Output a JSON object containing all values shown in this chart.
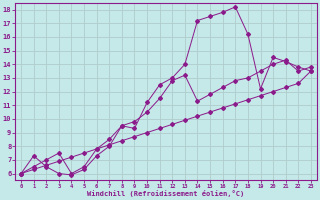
{
  "xlabel": "Windchill (Refroidissement éolien,°C)",
  "bg_color": "#c5e8e8",
  "grid_color": "#b0cccc",
  "line_color": "#8b1a8b",
  "xlim": [
    -0.5,
    23.5
  ],
  "ylim": [
    5.5,
    18.5
  ],
  "xticks": [
    0,
    1,
    2,
    3,
    4,
    5,
    6,
    7,
    8,
    9,
    10,
    11,
    12,
    13,
    14,
    15,
    16,
    17,
    18,
    19,
    20,
    21,
    22,
    23
  ],
  "yticks": [
    6,
    7,
    8,
    9,
    10,
    11,
    12,
    13,
    14,
    15,
    16,
    17,
    18
  ],
  "curve1_x": [
    0,
    1,
    2,
    3,
    4,
    5,
    6,
    7,
    8,
    9,
    10,
    11,
    12,
    13,
    14,
    15,
    16,
    17,
    18,
    19,
    20,
    21,
    22,
    23
  ],
  "curve1_y": [
    6.0,
    7.3,
    6.5,
    6.0,
    5.9,
    6.3,
    7.3,
    8.0,
    9.5,
    9.3,
    11.2,
    12.5,
    13.0,
    14.0,
    17.2,
    17.5,
    17.8,
    18.2,
    16.2,
    12.2,
    14.5,
    14.2,
    13.8,
    13.5
  ],
  "curve2_x": [
    0,
    1,
    2,
    3,
    4,
    5,
    6,
    7,
    8,
    9,
    10,
    11,
    12,
    13,
    14,
    15,
    16,
    17,
    18,
    19,
    20,
    21,
    22,
    23
  ],
  "curve2_y": [
    6.0,
    6.3,
    6.6,
    6.9,
    7.2,
    7.5,
    7.8,
    8.1,
    8.4,
    8.7,
    9.0,
    9.3,
    9.6,
    9.9,
    10.2,
    10.5,
    10.8,
    11.1,
    11.4,
    11.7,
    12.0,
    12.3,
    12.6,
    13.5
  ],
  "curve3_x": [
    0,
    1,
    2,
    3,
    4,
    5,
    6,
    7,
    8,
    9,
    10,
    11,
    12,
    13,
    14,
    15,
    16,
    17,
    18,
    19,
    20,
    21,
    22,
    23
  ],
  "curve3_y": [
    6.0,
    6.5,
    7.0,
    7.5,
    6.0,
    6.5,
    7.8,
    8.5,
    9.5,
    9.8,
    10.5,
    11.5,
    12.8,
    13.2,
    11.3,
    11.8,
    12.3,
    12.8,
    13.0,
    13.5,
    14.0,
    14.3,
    13.5,
    13.8
  ],
  "marker": "D",
  "markersize": 2.0
}
